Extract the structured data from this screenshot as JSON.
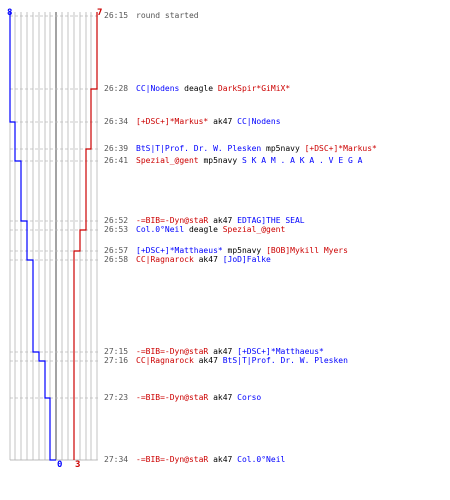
{
  "colors": {
    "team_blue": "#0000ff",
    "team_red": "#cc0000",
    "grid": "#aaaaaa",
    "center_line": "#666666",
    "dashed": "#bbbbbb",
    "time_text": "#555555",
    "neutral_text": "#000000"
  },
  "scores": {
    "blue_start": "8",
    "red_start": "7",
    "blue_end": "0",
    "red_end": "3"
  },
  "scoreboard": {
    "blue_steps": [
      8,
      7,
      6,
      5,
      4,
      3,
      2,
      1,
      0
    ],
    "red_steps": [
      7,
      6,
      5,
      4,
      3
    ]
  },
  "events": [
    {
      "time": "26:15",
      "segments": [
        {
          "text": "round started",
          "team": "neutral"
        }
      ]
    },
    {
      "time": "26:28",
      "segments": [
        {
          "text": "CC|Nodens",
          "team": "blue"
        },
        {
          "text": " deagle ",
          "team": "neutral"
        },
        {
          "text": "DarkSpir*GiMiX*",
          "team": "red"
        }
      ]
    },
    {
      "time": "26:34",
      "segments": [
        {
          "text": "[+DSC+]*Markus*",
          "team": "red"
        },
        {
          "text": " ak47 ",
          "team": "neutral"
        },
        {
          "text": "CC|Nodens",
          "team": "blue"
        }
      ]
    },
    {
      "time": "26:39",
      "segments": [
        {
          "text": "BtS|T|Prof. Dr. W. Plesken",
          "team": "blue"
        },
        {
          "text": " mp5navy ",
          "team": "neutral"
        },
        {
          "text": "[+DSC+]*Markus*",
          "team": "red"
        }
      ]
    },
    {
      "time": "26:41",
      "segments": [
        {
          "text": "Spezial_@gent",
          "team": "red"
        },
        {
          "text": " mp5navy ",
          "team": "neutral"
        },
        {
          "text": "S K A M . A K A . V E G A",
          "team": "blue"
        }
      ]
    },
    {
      "time": "26:52",
      "segments": [
        {
          "text": "-=BIB=-Dyn@staR",
          "team": "red"
        },
        {
          "text": " ak47 ",
          "team": "neutral"
        },
        {
          "text": "EDTAG]THE SEAL",
          "team": "blue"
        }
      ]
    },
    {
      "time": "26:53",
      "segments": [
        {
          "text": "Col.0°Neil",
          "team": "blue"
        },
        {
          "text": " deagle ",
          "team": "neutral"
        },
        {
          "text": "Spezial_@gent",
          "team": "red"
        }
      ]
    },
    {
      "time": "26:57",
      "segments": [
        {
          "text": "[+DSC+]*Matthaeus*",
          "team": "blue"
        },
        {
          "text": " mp5navy ",
          "team": "neutral"
        },
        {
          "text": "[BOB]Mykill Myers",
          "team": "red"
        }
      ]
    },
    {
      "time": "26:58",
      "segments": [
        {
          "text": "CC|Ragnarock",
          "team": "red"
        },
        {
          "text": " ak47 ",
          "team": "neutral"
        },
        {
          "text": "[JoD]Falke",
          "team": "blue"
        }
      ]
    },
    {
      "time": "27:15",
      "segments": [
        {
          "text": "-=BIB=-Dyn@staR",
          "team": "red"
        },
        {
          "text": " ak47 ",
          "team": "neutral"
        },
        {
          "text": "[+DSC+]*Matthaeus*",
          "team": "blue"
        }
      ]
    },
    {
      "time": "27:16",
      "segments": [
        {
          "text": "CC|Ragnarock",
          "team": "red"
        },
        {
          "text": " ak47 ",
          "team": "neutral"
        },
        {
          "text": "BtS|T|Prof. Dr. W. Plesken",
          "team": "blue"
        }
      ]
    },
    {
      "time": "27:23",
      "segments": [
        {
          "text": "-=BIB=-Dyn@staR",
          "team": "red"
        },
        {
          "text": " ak47 ",
          "team": "neutral"
        },
        {
          "text": "Corso",
          "team": "blue"
        }
      ]
    },
    {
      "time": "27:34",
      "segments": [
        {
          "text": "-=BIB=-Dyn@staR",
          "team": "red"
        },
        {
          "text": " ak47 ",
          "team": "neutral"
        },
        {
          "text": "Col.0°Neil",
          "team": "blue"
        }
      ]
    }
  ]
}
